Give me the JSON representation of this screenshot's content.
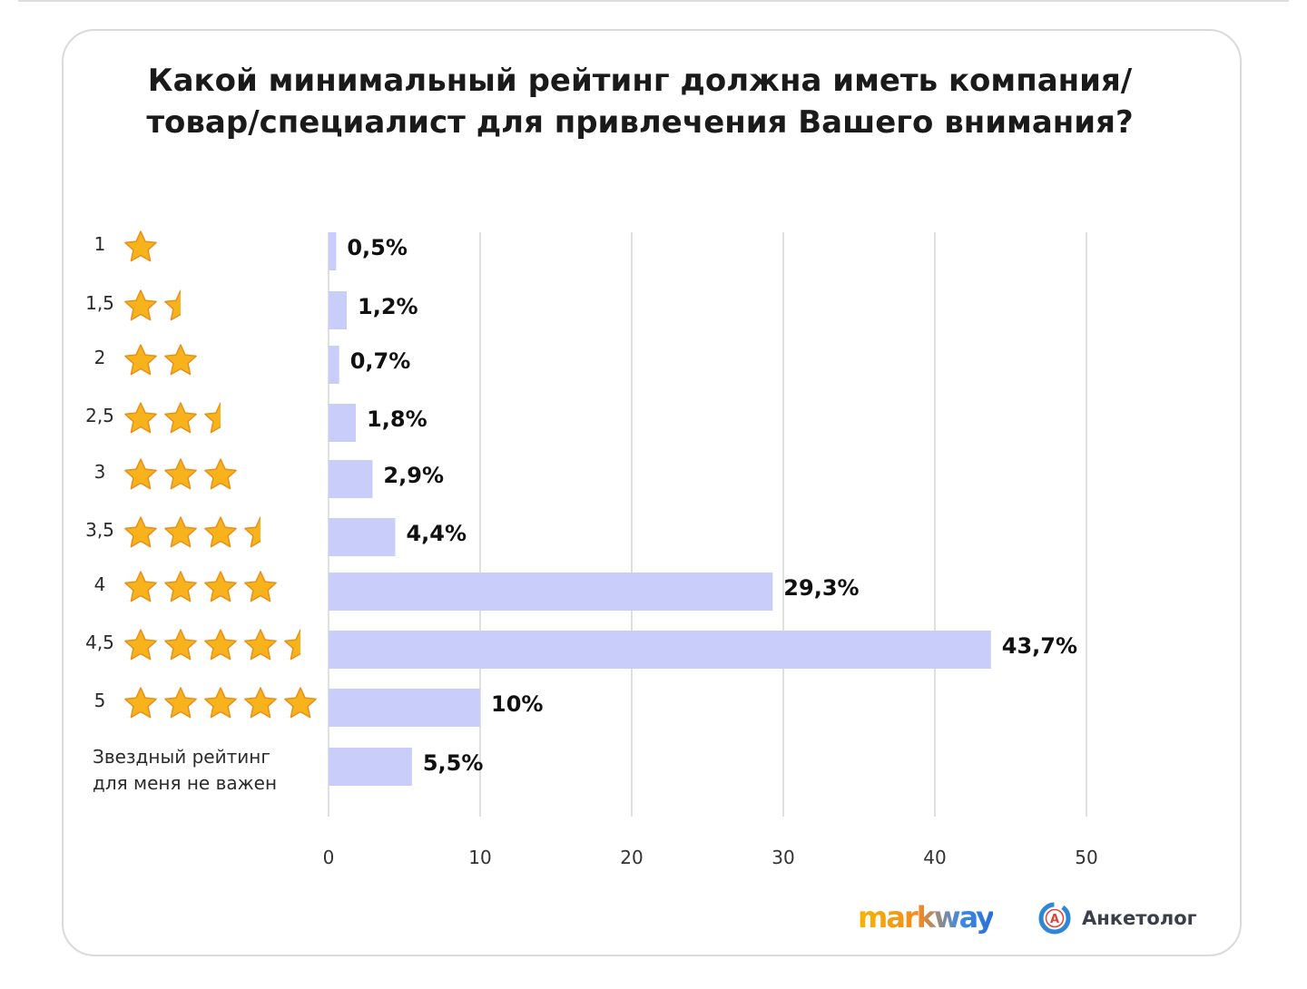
{
  "chart_data": {
    "type": "bar",
    "orientation": "horizontal",
    "title": "Какой минимальный рейтинг должна иметь компания/\nтовар/специалист для привлечения Вашего внимания?",
    "categories": [
      "1",
      "1,5",
      "2",
      "2,5",
      "3",
      "3,5",
      "4",
      "4,5",
      "5",
      "Звездный рейтинг\nдля меня не важен"
    ],
    "stars": [
      1,
      1.5,
      2,
      2.5,
      3,
      3.5,
      4,
      4.5,
      5,
      0
    ],
    "values": [
      0.5,
      1.2,
      0.7,
      1.8,
      2.9,
      4.4,
      29.3,
      43.7,
      10,
      5.5
    ],
    "value_labels": [
      "0,5%",
      "1,2%",
      "0,7%",
      "1,8%",
      "2,9%",
      "4,4%",
      "29,3%",
      "43,7%",
      "10%",
      "5,5%"
    ],
    "xlim": [
      0,
      50
    ],
    "xticks": [
      "0",
      "10",
      "20",
      "30",
      "40",
      "50"
    ],
    "xlabel": "",
    "ylabel": "",
    "grid": "vertical",
    "bar_color": "#c8cdf9",
    "grid_color": "#d6d6d6",
    "star_color": "#f7b21c"
  },
  "logos": {
    "markway": "markway",
    "anketolog": "Анкетолог",
    "anketolog_mark_letter": "А"
  }
}
